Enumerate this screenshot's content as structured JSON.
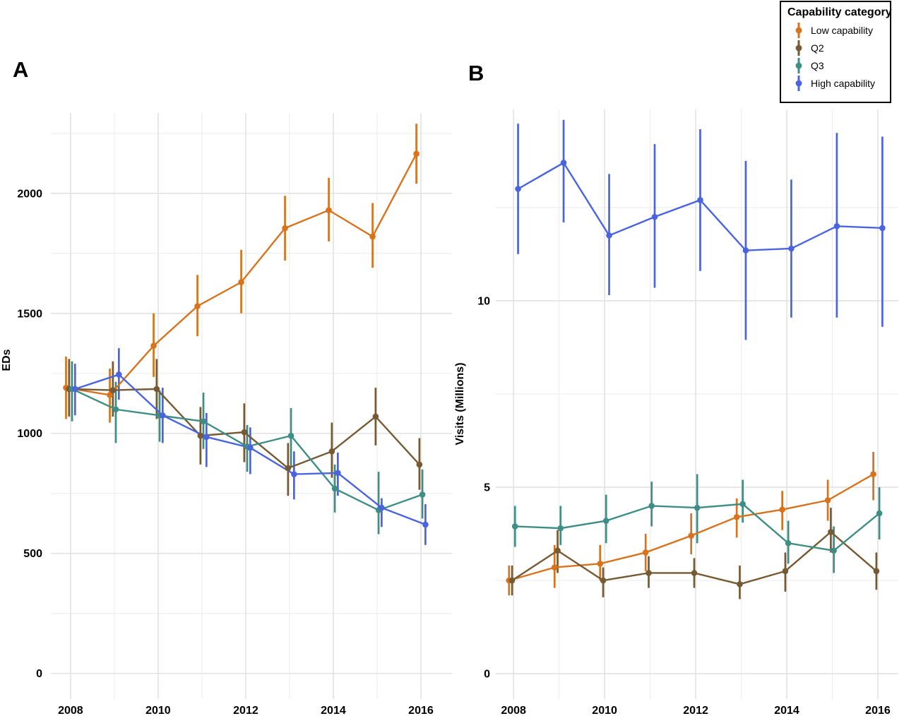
{
  "legend": {
    "title": "Capability category",
    "items": [
      {
        "label": "Low capability",
        "color": "#d6731c"
      },
      {
        "label": "Q2",
        "color": "#755a33"
      },
      {
        "label": "Q3",
        "color": "#3e8e85"
      },
      {
        "label": "High capability",
        "color": "#4a64e0"
      }
    ]
  },
  "chart_data": [
    {
      "panel": "A",
      "type": "line",
      "title": "",
      "xlabel": "",
      "ylabel": "EDs",
      "grid": true,
      "legend_position": "top-right-figure",
      "x": [
        2008,
        2009,
        2010,
        2011,
        2012,
        2013,
        2014,
        2015,
        2016
      ],
      "xticks": [
        2008,
        2010,
        2012,
        2014,
        2016
      ],
      "yticks": [
        0,
        500,
        1000,
        1500,
        2000
      ],
      "yminor": [
        250,
        750,
        1250,
        1750,
        2250
      ],
      "xlim": [
        2007.55,
        2016.71
      ],
      "ylim": [
        -107,
        2335
      ],
      "series": [
        {
          "name": "Low capability",
          "color": "#d6731c",
          "values": [
            1190,
            1160,
            1365,
            1530,
            1630,
            1855,
            1930,
            1820,
            2165
          ],
          "ci_low": [
            1060,
            1045,
            1235,
            1405,
            1500,
            1720,
            1800,
            1690,
            2040
          ],
          "ci_high": [
            1320,
            1270,
            1500,
            1660,
            1765,
            1990,
            2065,
            1960,
            2290
          ]
        },
        {
          "name": "Q2",
          "color": "#755a33",
          "values": [
            1185,
            1180,
            1185,
            990,
            1005,
            855,
            925,
            1070,
            870
          ],
          "ci_low": [
            1070,
            1070,
            1060,
            870,
            880,
            740,
            815,
            950,
            765
          ],
          "ci_high": [
            1310,
            1300,
            1310,
            1110,
            1125,
            960,
            1045,
            1190,
            980
          ]
        },
        {
          "name": "Q3",
          "color": "#3e8e85",
          "values": [
            1185,
            1100,
            1075,
            1050,
            945,
            990,
            770,
            680,
            745
          ],
          "ci_low": [
            1050,
            960,
            965,
            935,
            840,
            860,
            670,
            580,
            645
          ],
          "ci_high": [
            1300,
            1215,
            1180,
            1170,
            1035,
            1105,
            870,
            840,
            850
          ]
        },
        {
          "name": "High capability",
          "color": "#4a64e0",
          "values": [
            1185,
            1245,
            1075,
            985,
            940,
            830,
            835,
            690,
            620
          ],
          "ci_low": [
            1075,
            1140,
            960,
            860,
            830,
            725,
            740,
            610,
            535
          ],
          "ci_high": [
            1290,
            1355,
            1190,
            1085,
            1025,
            925,
            920,
            730,
            705
          ]
        }
      ]
    },
    {
      "panel": "B",
      "type": "line",
      "title": "",
      "xlabel": "",
      "ylabel": "Visits (Millions)",
      "grid": true,
      "legend_position": "top-right-figure",
      "x": [
        2008,
        2009,
        2010,
        2011,
        2012,
        2013,
        2014,
        2015,
        2016
      ],
      "xticks": [
        2008,
        2010,
        2012,
        2014,
        2016
      ],
      "yticks": [
        0,
        5,
        10
      ],
      "yminor": [
        2.5,
        7.5,
        12.5
      ],
      "xlim": [
        2007.61,
        2016.45
      ],
      "ylim": [
        -0.68,
        15.13
      ],
      "series": [
        {
          "name": "Low capability",
          "color": "#d6731c",
          "values": [
            2.5,
            2.85,
            2.95,
            3.25,
            3.7,
            4.2,
            4.4,
            4.65,
            5.35
          ],
          "ci_low": [
            2.1,
            2.3,
            2.5,
            2.75,
            3.2,
            3.65,
            3.85,
            4.1,
            4.65
          ],
          "ci_high": [
            2.9,
            3.45,
            3.45,
            3.75,
            4.3,
            4.7,
            4.9,
            5.2,
            5.95
          ]
        },
        {
          "name": "Q2",
          "color": "#755a33",
          "values": [
            2.5,
            3.3,
            2.5,
            2.7,
            2.7,
            2.4,
            2.75,
            3.8,
            2.75
          ],
          "ci_low": [
            2.1,
            2.7,
            2.05,
            2.3,
            2.3,
            2.0,
            2.2,
            3.25,
            2.25
          ],
          "ci_high": [
            2.9,
            3.85,
            2.85,
            3.15,
            3.1,
            2.9,
            3.25,
            4.45,
            3.25
          ]
        },
        {
          "name": "Q3",
          "color": "#3e8e85",
          "values": [
            3.95,
            3.9,
            4.1,
            4.5,
            4.45,
            4.55,
            3.5,
            3.3,
            4.3
          ],
          "ci_low": [
            3.4,
            3.45,
            3.5,
            3.95,
            3.5,
            4.05,
            2.95,
            2.7,
            3.6
          ],
          "ci_high": [
            4.5,
            4.5,
            4.8,
            5.15,
            5.35,
            5.2,
            4.1,
            3.95,
            5.0
          ]
        },
        {
          "name": "High capability",
          "color": "#4a64e0",
          "values": [
            13.0,
            13.7,
            11.75,
            12.25,
            12.7,
            11.35,
            11.4,
            12.0,
            11.95
          ],
          "ci_low": [
            11.25,
            12.1,
            10.15,
            10.35,
            10.8,
            8.95,
            9.55,
            9.55,
            9.3
          ],
          "ci_high": [
            14.75,
            14.85,
            13.4,
            14.2,
            14.6,
            13.75,
            13.25,
            14.5,
            14.4
          ]
        }
      ]
    }
  ]
}
